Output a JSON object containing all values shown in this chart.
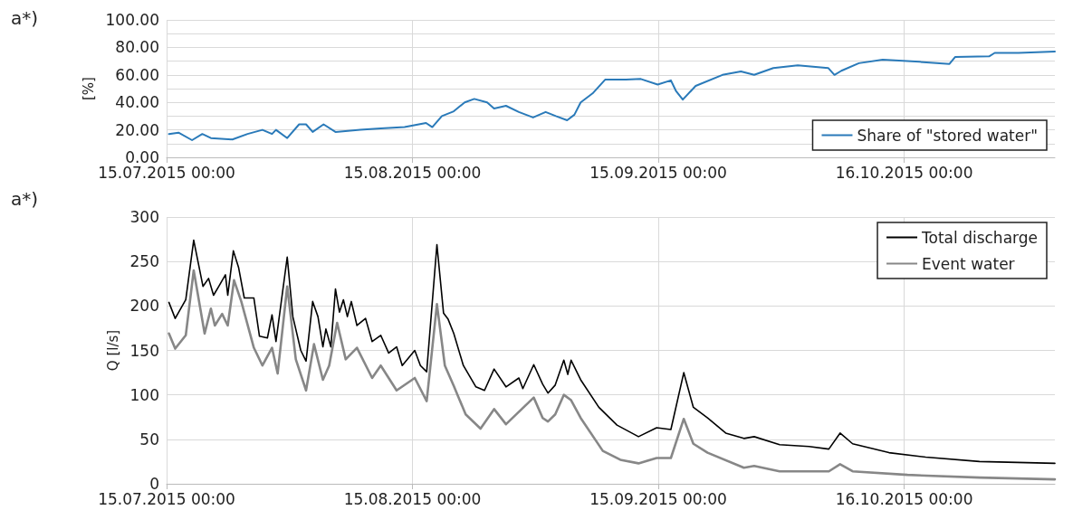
{
  "chart_data": [
    {
      "type": "line",
      "annotations": [
        "a*)"
      ],
      "ylabel": "[%]",
      "xlim": [
        "2015-07-15",
        "2015-11-04"
      ],
      "xticks": [
        {
          "value": "2015-07-15T00:00",
          "label": "15.07.2015 00:00"
        },
        {
          "value": "2015-08-15T00:00",
          "label": "15.08.2015 00:00"
        },
        {
          "value": "2015-09-15T00:00",
          "label": "15.09.2015 00:00"
        },
        {
          "value": "2015-10-16T00:00",
          "label": "16.10.2015 00:00"
        }
      ],
      "ylim": [
        0,
        100
      ],
      "yticks": [
        {
          "value": 0,
          "label": "0.00"
        },
        {
          "value": 10,
          "label": null
        },
        {
          "value": 20,
          "label": "20.00"
        },
        {
          "value": 30,
          "label": null
        },
        {
          "value": 40,
          "label": "40.00"
        },
        {
          "value": 50,
          "label": null
        },
        {
          "value": 60,
          "label": "60.00"
        },
        {
          "value": 70,
          "label": null
        },
        {
          "value": 80,
          "label": "80.00"
        },
        {
          "value": 90,
          "label": null
        },
        {
          "value": 100,
          "label": "100.00"
        }
      ],
      "grid": true,
      "legend": "bottom right",
      "marker": "none",
      "line_style": "solid",
      "series": [
        {
          "name": "Share of \"stored water\"",
          "color": "#2a7ab9",
          "x": [
            "2015-07-15T07:00",
            "2015-07-16T12:00",
            "2015-07-18T05:00",
            "2015-07-19T12:00",
            "2015-07-20T14:00",
            "2015-07-23T07:00",
            "2015-07-25T05:00",
            "2015-07-27T02:00",
            "2015-07-28T07:00",
            "2015-07-28T19:00",
            "2015-07-30T05:00",
            "2015-07-31T17:00",
            "2015-08-01T14:00",
            "2015-08-02T10:00",
            "2015-08-03T19:00",
            "2015-08-05T07:00",
            "2015-08-08T10:00",
            "2015-08-11T00:00",
            "2015-08-14T00:00",
            "2015-08-16T17:00",
            "2015-08-17T12:00",
            "2015-08-18T17:00",
            "2015-08-20T05:00",
            "2015-08-21T14:00",
            "2015-08-22T19:00",
            "2015-08-24T10:00",
            "2015-08-25T07:00",
            "2015-08-26T19:00",
            "2015-08-28T10:00",
            "2015-08-30T05:00",
            "2015-08-31T19:00",
            "2015-09-02T02:00",
            "2015-09-03T12:00",
            "2015-09-04T10:00",
            "2015-09-05T05:00",
            "2015-09-06T17:00",
            "2015-09-08T07:00",
            "2015-09-10T22:00",
            "2015-09-12T19:00",
            "2015-09-14T22:00",
            "2015-09-16T14:00",
            "2015-09-17T05:00",
            "2015-09-18T02:00",
            "2015-09-19T17:00",
            "2015-09-23T02:00",
            "2015-09-25T10:00",
            "2015-09-27T02:00",
            "2015-09-29T12:00",
            "2015-10-02T14:00",
            "2015-10-06T10:00",
            "2015-10-07T05:00",
            "2015-10-08T02:00",
            "2015-10-10T07:00",
            "2015-10-13T07:00",
            "2015-10-17T22:00",
            "2015-10-21T17:00",
            "2015-10-22T10:00",
            "2015-10-26T17:00",
            "2015-10-27T10:00",
            "2015-10-30T10:00",
            "2015-11-04T00:00"
          ],
          "values": [
            17,
            18,
            12.5,
            17,
            14,
            13,
            17,
            20,
            17,
            20,
            14,
            24,
            24,
            18.5,
            24,
            18.5,
            20,
            21,
            22,
            25,
            22,
            30,
            33.5,
            40,
            42.5,
            40,
            35.5,
            37.5,
            33,
            29,
            33,
            30,
            27,
            31,
            40,
            46.5,
            56.5,
            56.5,
            57,
            53,
            56,
            48.5,
            42,
            52,
            60,
            62.5,
            60,
            65,
            67,
            65,
            60,
            63,
            68.5,
            71,
            69.5,
            68,
            73,
            73.5,
            76,
            76,
            77
          ]
        }
      ]
    },
    {
      "type": "line",
      "annotations": [
        "a*)"
      ],
      "ylabel": "Q [l/s]",
      "xlim": [
        "2015-07-15",
        "2015-11-04"
      ],
      "xticks": [
        {
          "value": "2015-07-15T00:00",
          "label": "15.07.2015 00:00"
        },
        {
          "value": "2015-08-15T00:00",
          "label": "15.08.2015 00:00"
        },
        {
          "value": "2015-09-15T00:00",
          "label": "15.09.2015 00:00"
        },
        {
          "value": "2015-10-16T00:00",
          "label": "16.10.2015 00:00"
        }
      ],
      "ylim": [
        0,
        300
      ],
      "yticks": [
        0,
        50,
        100,
        150,
        200,
        250,
        300
      ],
      "grid": true,
      "legend": "top right",
      "marker": "none",
      "line_style": "solid",
      "series": [
        {
          "name": "Total discharge",
          "color": "#000000",
          "x": [
            "2015-07-15T07:00",
            "2015-07-16T02:00",
            "2015-07-17T10:00",
            "2015-07-18T10:00",
            "2015-07-19T14:00",
            "2015-07-20T07:00",
            "2015-07-20T22:00",
            "2015-07-21T14:00",
            "2015-07-22T10:00",
            "2015-07-22T17:00",
            "2015-07-23T10:00",
            "2015-07-24T02:00",
            "2015-07-24T19:00",
            "2015-07-26T00:00",
            "2015-07-26T17:00",
            "2015-07-27T17:00",
            "2015-07-28T07:00",
            "2015-07-28T19:00",
            "2015-07-30T05:00",
            "2015-07-30T22:00",
            "2015-07-31T22:00",
            "2015-08-01T14:00",
            "2015-08-02T10:00",
            "2015-08-03T02:00",
            "2015-08-03T17:00",
            "2015-08-04T02:00",
            "2015-08-04T17:00",
            "2015-08-05T07:00",
            "2015-08-05T19:00",
            "2015-08-06T07:00",
            "2015-08-06T19:00",
            "2015-08-07T07:00",
            "2015-08-08T00:00",
            "2015-08-09T02:00",
            "2015-08-09T22:00",
            "2015-08-11T00:00",
            "2015-08-12T00:00",
            "2015-08-13T00:00",
            "2015-08-13T17:00",
            "2015-08-15T07:00",
            "2015-08-16T00:00",
            "2015-08-16T19:00",
            "2015-08-18T02:00",
            "2015-08-18T22:00",
            "2015-08-19T12:00",
            "2015-08-20T05:00",
            "2015-08-21T10:00",
            "2015-08-23T00:00",
            "2015-08-24T02:00",
            "2015-08-25T07:00",
            "2015-08-26T19:00",
            "2015-08-28T10:00",
            "2015-08-28T22:00",
            "2015-08-30T07:00",
            "2015-08-31T10:00",
            "2015-09-01T02:00",
            "2015-09-02T00:00",
            "2015-09-03T02:00",
            "2015-09-03T14:00",
            "2015-09-04T00:00",
            "2015-09-05T05:00",
            "2015-09-07T12:00",
            "2015-09-09T19:00",
            "2015-09-12T12:00",
            "2015-09-14T19:00",
            "2015-09-16T14:00",
            "2015-09-18T05:00",
            "2015-09-19T10:00",
            "2015-09-21T05:00",
            "2015-09-23T12:00",
            "2015-09-25T19:00",
            "2015-09-27T02:00",
            "2015-09-30T07:00",
            "2015-10-04T00:00",
            "2015-10-06T12:00",
            "2015-10-07T22:00",
            "2015-10-09T12:00",
            "2015-10-14T02:00",
            "2015-10-18T17:00",
            "2015-10-25T12:00",
            "2015-11-04T00:00"
          ],
          "values": [
            204,
            186,
            207,
            274,
            222,
            231,
            212,
            222,
            235,
            212,
            262,
            243,
            209,
            209,
            166,
            164,
            190,
            160,
            255,
            188,
            150,
            138,
            205,
            188,
            154,
            174,
            154,
            219,
            193,
            207,
            188,
            205,
            178,
            186,
            160,
            167,
            147,
            154,
            133,
            150,
            133,
            126,
            269,
            192,
            185,
            169,
            133,
            109,
            105,
            129,
            109,
            119,
            107,
            134,
            112,
            102,
            111,
            139,
            123,
            139,
            117,
            86,
            66,
            53,
            63,
            61,
            125,
            86,
            74,
            57,
            51,
            53,
            44,
            42,
            39,
            57,
            45,
            35,
            30,
            25,
            23
          ]
        },
        {
          "name": "Event water",
          "color": "#878787",
          "x": [
            "2015-07-15T07:00",
            "2015-07-16T02:00",
            "2015-07-17T10:00",
            "2015-07-18T10:00",
            "2015-07-19T19:00",
            "2015-07-20T14:00",
            "2015-07-21T02:00",
            "2015-07-22T00:00",
            "2015-07-22T17:00",
            "2015-07-23T12:00",
            "2015-07-24T10:00",
            "2015-07-26T00:00",
            "2015-07-27T02:00",
            "2015-07-28T07:00",
            "2015-07-29T00:00",
            "2015-07-30T05:00",
            "2015-07-31T07:00",
            "2015-08-01T14:00",
            "2015-08-02T14:00",
            "2015-08-03T17:00",
            "2015-08-04T12:00",
            "2015-08-05T12:00",
            "2015-08-06T14:00",
            "2015-08-08T00:00",
            "2015-08-09T22:00",
            "2015-08-11T00:00",
            "2015-08-13T00:00",
            "2015-08-15T07:00",
            "2015-08-16T19:00",
            "2015-08-18T02:00",
            "2015-08-19T02:00",
            "2015-08-20T05:00",
            "2015-08-21T17:00",
            "2015-08-23T14:00",
            "2015-08-25T07:00",
            "2015-08-26T19:00",
            "2015-08-30T07:00",
            "2015-08-31T10:00",
            "2015-09-01T02:00",
            "2015-09-02T00:00",
            "2015-09-03T02:00",
            "2015-09-04T00:00",
            "2015-09-05T05:00",
            "2015-09-08T00:00",
            "2015-09-10T05:00",
            "2015-09-12T12:00",
            "2015-09-14T19:00",
            "2015-09-16T14:00",
            "2015-09-18T05:00",
            "2015-09-19T10:00",
            "2015-09-21T05:00",
            "2015-09-25T19:00",
            "2015-09-27T02:00",
            "2015-09-30T07:00",
            "2015-10-06T12:00",
            "2015-10-07T22:00",
            "2015-10-09T12:00",
            "2015-10-16T10:00",
            "2015-10-25T12:00",
            "2015-11-04T00:00"
          ],
          "values": [
            169,
            152,
            167,
            240,
            169,
            197,
            178,
            191,
            178,
            229,
            205,
            153,
            133,
            153,
            124,
            222,
            140,
            105,
            157,
            117,
            133,
            181,
            140,
            153,
            119,
            133,
            105,
            119,
            93,
            202,
            133,
            110,
            78,
            62,
            84,
            67,
            97,
            74,
            70,
            78,
            100,
            94,
            74,
            37,
            27,
            23,
            29,
            29,
            73,
            45,
            35,
            18,
            20,
            14,
            14,
            22,
            14,
            10,
            7,
            5
          ]
        }
      ]
    }
  ]
}
